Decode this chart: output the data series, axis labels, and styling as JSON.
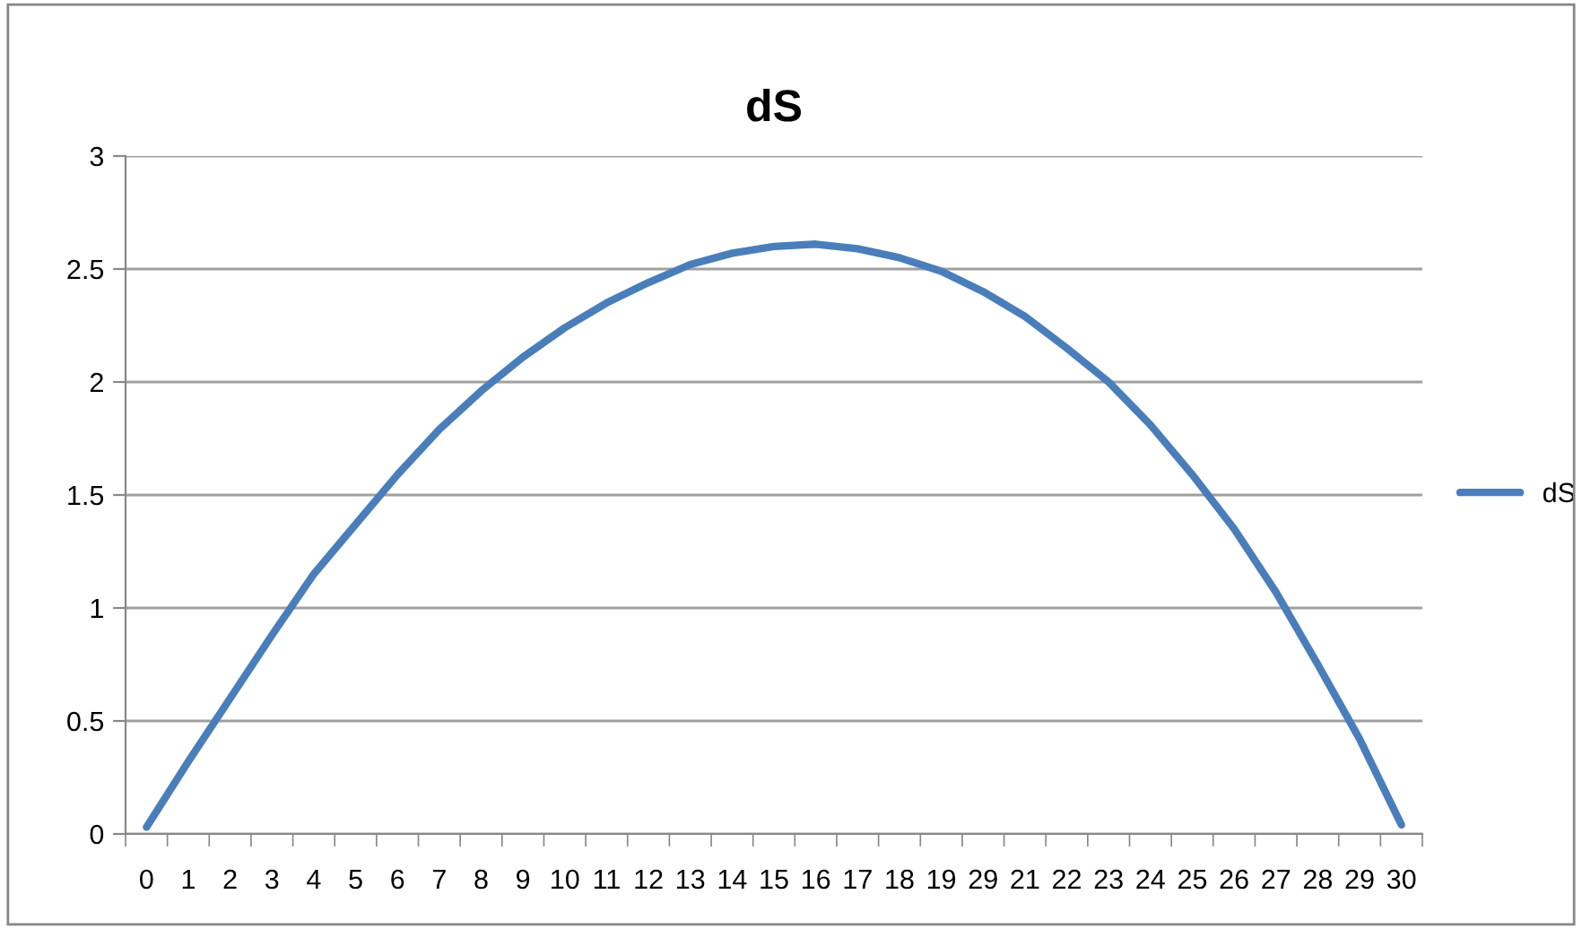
{
  "chart_data": {
    "type": "line",
    "title": "dS",
    "categories": [
      "0",
      "1",
      "2",
      "3",
      "4",
      "5",
      "6",
      "7",
      "8",
      "9",
      "10",
      "11",
      "12",
      "13",
      "14",
      "15",
      "16",
      "17",
      "18",
      "19",
      "29",
      "21",
      "22",
      "23",
      "24",
      "25",
      "26",
      "27",
      "28",
      "29",
      "30"
    ],
    "series": [
      {
        "name": "dS",
        "color": "#4a7ebb",
        "values": [
          0.03,
          0.32,
          0.6,
          0.88,
          1.15,
          1.37,
          1.59,
          1.79,
          1.96,
          2.11,
          2.24,
          2.35,
          2.44,
          2.52,
          2.57,
          2.6,
          2.61,
          2.59,
          2.55,
          2.49,
          2.4,
          2.29,
          2.15,
          2.0,
          1.81,
          1.59,
          1.35,
          1.07,
          0.75,
          0.42,
          0.04
        ]
      }
    ],
    "ylim": [
      0,
      3
    ],
    "yticks": [
      0,
      0.5,
      1,
      1.5,
      2,
      2.5,
      3
    ],
    "grid": "y",
    "legend": "right",
    "marker": "none",
    "line_style": "solid"
  }
}
